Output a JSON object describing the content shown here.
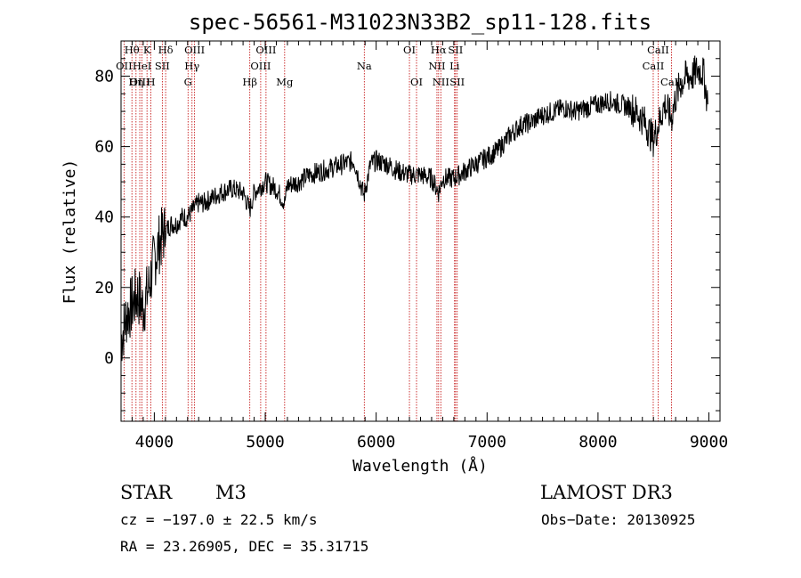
{
  "chart_data": {
    "type": "line",
    "title": "spec-56561-M31023N33B2_sp11-128.fits",
    "xlabel": "Wavelength (Å)",
    "ylabel": "Flux (relative)",
    "xlim": [
      3700,
      9100
    ],
    "ylim": [
      -18,
      90
    ],
    "xticks": [
      "4000",
      "5000",
      "6000",
      "7000",
      "8000",
      "9000"
    ],
    "yticks": [
      "0",
      "20",
      "40",
      "60",
      "80"
    ],
    "grid": false,
    "series": [
      {
        "color": "#000000",
        "x": [
          3700,
          3750,
          3800,
          3850,
          3900,
          3950,
          4000,
          4050,
          4100,
          4150,
          4200,
          4250,
          4300,
          4350,
          4400,
          4450,
          4500,
          4600,
          4700,
          4800,
          4860,
          4900,
          5000,
          5100,
          5175,
          5200,
          5300,
          5400,
          5500,
          5600,
          5700,
          5800,
          5890,
          5950,
          6000,
          6100,
          6200,
          6300,
          6400,
          6500,
          6563,
          6600,
          6700,
          6800,
          6900,
          7000,
          7100,
          7200,
          7300,
          7400,
          7500,
          7600,
          7700,
          7800,
          7900,
          8000,
          8100,
          8200,
          8300,
          8400,
          8498,
          8542,
          8600,
          8662,
          8700,
          8750,
          8800,
          8850,
          8900,
          8950,
          8990
        ],
        "y": [
          5,
          12,
          15,
          18,
          14,
          20,
          28,
          33,
          36,
          38,
          38,
          40,
          40,
          42,
          44,
          44,
          45,
          47,
          48,
          47,
          42,
          47,
          50,
          48,
          44,
          49,
          50,
          52,
          53,
          54,
          55,
          56,
          46,
          55,
          56,
          55,
          53,
          52,
          52,
          51,
          47,
          51,
          51,
          53,
          55,
          57,
          59,
          63,
          66,
          67,
          69,
          70,
          71,
          70,
          71,
          72,
          73,
          72,
          71,
          68,
          62,
          66,
          72,
          68,
          74,
          78,
          80,
          80,
          82,
          81,
          72
        ]
      }
    ],
    "lines": [
      {
        "label": "Hθ",
        "wave": 3798,
        "row": 0
      },
      {
        "label": "OII",
        "wave": 3727,
        "row": 1
      },
      {
        "label": "OIII",
        "wave": 3869,
        "row": 2
      },
      {
        "label": "K",
        "wave": 3934,
        "row": 0
      },
      {
        "label": "HeI",
        "wave": 3889,
        "row": 1
      },
      {
        "label": "Hη",
        "wave": 3835,
        "row": 2
      },
      {
        "label": "H",
        "wave": 3969,
        "row": 2
      },
      {
        "label": "Hδ",
        "wave": 4102,
        "row": 0
      },
      {
        "label": "SII",
        "wave": 4072,
        "row": 1
      },
      {
        "label": "OIII",
        "wave": 4363,
        "row": 0
      },
      {
        "label": "Hγ",
        "wave": 4340,
        "row": 1
      },
      {
        "label": "G",
        "wave": 4304,
        "row": 2
      },
      {
        "label": "Hβ",
        "wave": 4861,
        "row": 2
      },
      {
        "label": "OIII",
        "wave": 5007,
        "row": 0
      },
      {
        "label": "OIII",
        "wave": 4959,
        "row": 1
      },
      {
        "label": "Mg",
        "wave": 5175,
        "row": 2
      },
      {
        "label": "Na",
        "wave": 5893,
        "row": 1
      },
      {
        "label": "OI",
        "wave": 6300,
        "row": 0
      },
      {
        "label": "OI",
        "wave": 6364,
        "row": 2
      },
      {
        "label": "Hα",
        "wave": 6563,
        "row": 0
      },
      {
        "label": "NII",
        "wave": 6548,
        "row": 1
      },
      {
        "label": "NII",
        "wave": 6583,
        "row": 2
      },
      {
        "label": "SII",
        "wave": 6716,
        "row": 0
      },
      {
        "label": "Li",
        "wave": 6707,
        "row": 1
      },
      {
        "label": "SII",
        "wave": 6731,
        "row": 2
      },
      {
        "label": "CaII",
        "wave": 8542,
        "row": 0
      },
      {
        "label": "CaII",
        "wave": 8498,
        "row": 1
      },
      {
        "label": "CaII",
        "wave": 8662,
        "row": 2
      }
    ]
  },
  "footer": {
    "class": "STAR",
    "subclass": "M3",
    "survey": "LAMOST DR3",
    "cz": "cz = −197.0 ± 22.5 km/s",
    "obs_date": "Obs−Date: 20130925",
    "coords": "RA =  23.26905, DEC =  35.31715"
  }
}
